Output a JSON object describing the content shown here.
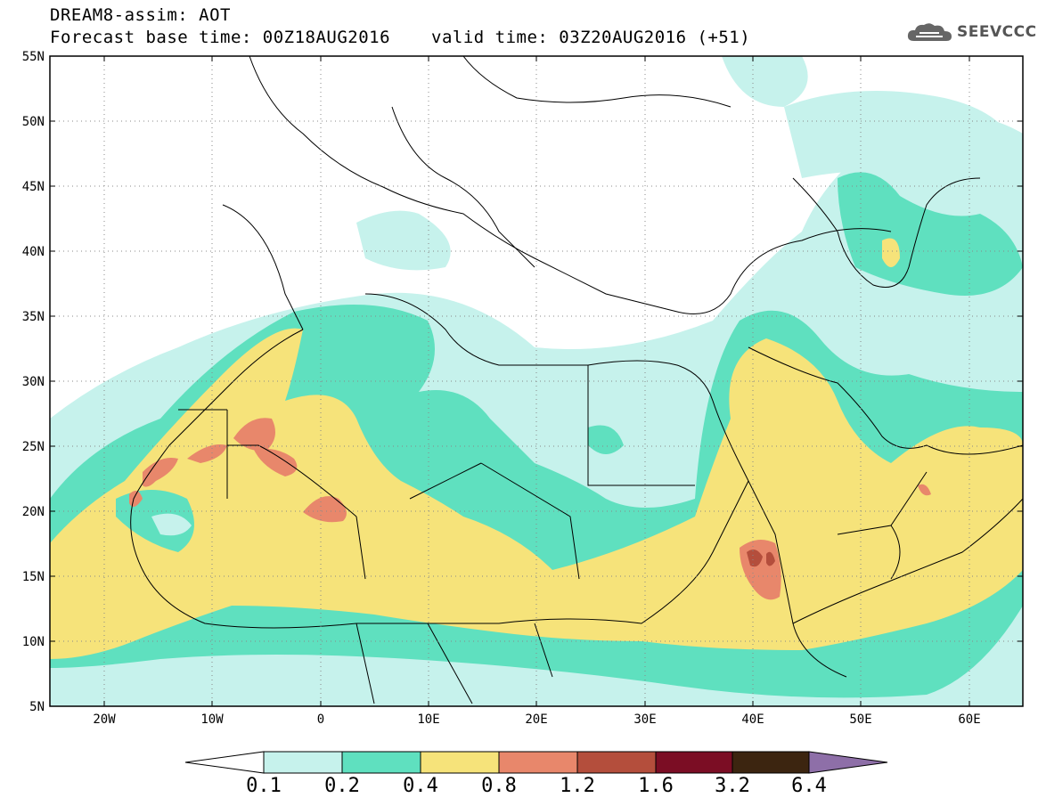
{
  "header": {
    "title_line1": "DREAM8-assim: AOT",
    "title_line2": "Forecast base time: 00Z18AUG2016",
    "valid_time": "valid time: 03Z20AUG2016 (+51)",
    "logo_text": "SEEVCCC",
    "logo_icon": "cloud-icon"
  },
  "map": {
    "lat_labels": [
      "55N",
      "50N",
      "45N",
      "40N",
      "35N",
      "30N",
      "25N",
      "20N",
      "15N",
      "10N",
      "5N"
    ],
    "lon_labels": [
      "20W",
      "10W",
      "0",
      "10E",
      "20E",
      "30E",
      "40E",
      "50E",
      "60E"
    ],
    "lon_range": [
      -25,
      65
    ],
    "lat_range": [
      5,
      55
    ],
    "grid": "dotted"
  },
  "colorbar": {
    "labels": [
      "0.1",
      "0.2",
      "0.4",
      "0.8",
      "1.2",
      "1.6",
      "3.2",
      "6.4"
    ],
    "colors": [
      "#c6f2ec",
      "#5fe0bf",
      "#f6e37a",
      "#e8876b",
      "#b44e3c",
      "#7b0d24",
      "#3c2510",
      "#8e6fa8"
    ]
  },
  "colors": {
    "c1": "#c6f2ec",
    "c2": "#5fe0bf",
    "c3": "#f6e37a",
    "c4": "#e8876b",
    "c5": "#b44e3c"
  }
}
